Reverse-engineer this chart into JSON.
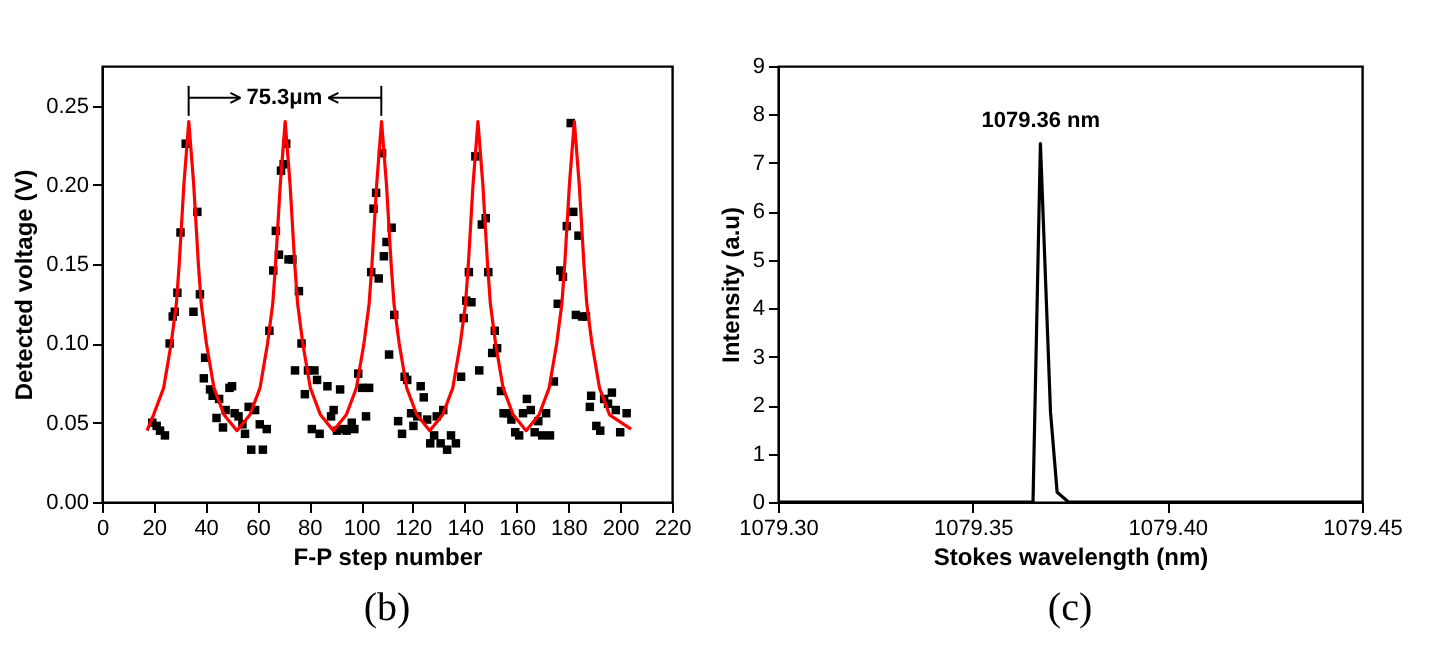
{
  "chart_data": [
    {
      "type": "scatter",
      "xlabel": "F-P step number",
      "ylabel": "Detected voltage (V)",
      "xlim": [
        0,
        220
      ],
      "xticks": [
        0,
        20,
        40,
        60,
        80,
        100,
        120,
        140,
        160,
        180,
        200,
        220
      ],
      "ylim": [
        0,
        0.275
      ],
      "yticks": [
        {
          "value": 0,
          "label": "0.00"
        },
        0.05,
        {
          "value": 0.1,
          "label": "0.10"
        },
        0.15,
        {
          "value": 0.2,
          "label": "0.20"
        },
        0.25
      ],
      "annotations": [
        "75.3μm",
        "(b)"
      ],
      "series": [
        {
          "color": "#000000",
          "marker": "square",
          "x": [
            19.4,
            21.1,
            22.4,
            24.3,
            26.1,
            27.3,
            28.1,
            29.1,
            30.3,
            32.3,
            35.3,
            36.8,
            37.8,
            39.3,
            39.8,
            41.7,
            42.7,
            44.2,
            45.2,
            46.7,
            47.7,
            49.2,
            50.2,
            51.2,
            52.7,
            54.2,
            55.2,
            56.6,
            57.6,
            59.1,
            60.9,
            62.1,
            63.6,
            64.6,
            66.1,
            67.1,
            68.3,
            69.1,
            70.1,
            71.1,
            72.0,
            73.5,
            74.5,
            76.0,
            77.0,
            78.3,
            79.5,
            81.0,
            82.0,
            83.0,
            84.0,
            87.0,
            88.4,
            89.4,
            90.7,
            91.9,
            93.2,
            94.4,
            96.4,
            97.4,
            98.9,
            100.4,
            101.9,
            103.1,
            103.9,
            104.8,
            105.8,
            106.8,
            108.1,
            108.8,
            109.8,
            110.8,
            111.8,
            112.8,
            114.3,
            115.8,
            116.8,
            117.8,
            119.3,
            120.2,
            121.7,
            123.0,
            124.2,
            125.5,
            126.7,
            128.2,
            129.2,
            130.7,
            131.7,
            133.2,
            134.7,
            136.6,
            138.6,
            139.6,
            140.6,
            141.6,
            142.6,
            144.1,
            145.6,
            146.6,
            148.1,
            149.1,
            150.6,
            151.6,
            152.5,
            154.0,
            155.0,
            156.5,
            158.0,
            159.5,
            161.0,
            162.5,
            164.0,
            165.5,
            167.0,
            168.4,
            169.9,
            171.4,
            172.9,
            174.4,
            175.9,
            176.9,
            177.9,
            179.4,
            180.9,
            181.9,
            182.9,
            183.9,
            185.3,
            186.8,
            188.3,
            188.8,
            190.8,
            192.3,
            193.8,
            195.3,
            196.8,
            198.3,
            200.0,
            202.5
          ],
          "values": [
            0.05,
            0.048,
            0.045,
            0.042,
            0.1,
            0.117,
            0.12,
            0.132,
            0.17,
            0.226,
            0.12,
            0.183,
            0.131,
            0.078,
            0.091,
            0.071,
            0.067,
            0.053,
            0.065,
            0.047,
            0.058,
            0.072,
            0.073,
            0.056,
            0.054,
            0.049,
            0.043,
            0.06,
            0.033,
            0.058,
            0.049,
            0.033,
            0.046,
            0.108,
            0.146,
            0.171,
            0.156,
            0.209,
            0.213,
            0.226,
            0.153,
            0.153,
            0.083,
            0.133,
            0.1,
            0.068,
            0.083,
            0.046,
            0.083,
            0.077,
            0.043,
            0.073,
            0.054,
            0.058,
            0.045,
            0.071,
            0.046,
            0.045,
            0.05,
            0.046,
            0.081,
            0.072,
            0.054,
            0.072,
            0.145,
            0.185,
            0.195,
            0.141,
            0.22,
            0.155,
            0.164,
            0.093,
            0.173,
            0.118,
            0.051,
            0.043,
            0.079,
            0.077,
            0.056,
            0.048,
            0.054,
            0.073,
            0.066,
            0.052,
            0.037,
            0.042,
            0.054,
            0.037,
            0.058,
            0.033,
            0.042,
            0.037,
            0.079,
            0.116,
            0.127,
            0.145,
            0.126,
            0.218,
            0.083,
            0.175,
            0.179,
            0.145,
            0.094,
            0.108,
            0.097,
            0.07,
            0.056,
            0.056,
            0.052,
            0.044,
            0.042,
            0.056,
            0.065,
            0.058,
            0.044,
            0.051,
            0.042,
            0.056,
            0.042,
            0.076,
            0.125,
            0.146,
            0.142,
            0.174,
            0.239,
            0.183,
            0.118,
            0.168,
            0.117,
            0.117,
            0.06,
            0.067,
            0.048,
            0.045,
            0.065,
            0.062,
            0.069,
            0.058,
            0.044,
            0.056
          ]
        },
        {
          "type": "line",
          "color": "#ff0000",
          "x": [
            17.4,
            19.9,
            23.8,
            26.7,
            28.7,
            29.8,
            31.6,
            33.5,
            35.4,
            37.2,
            38.3,
            40.3,
            43.2,
            47.1,
            52.1,
            57.1,
            61.0,
            63.9,
            65.9,
            67.0,
            68.8,
            70.7,
            72.6,
            74.4,
            75.5,
            77.5,
            80.4,
            84.3,
            89.3,
            94.3,
            98.2,
            101.1,
            103.1,
            104.2,
            106.0,
            107.9,
            109.8,
            111.6,
            112.7,
            114.7,
            117.6,
            121.5,
            126.5,
            131.5,
            135.4,
            138.3,
            140.3,
            141.4,
            143.2,
            145.1,
            147.0,
            148.8,
            149.9,
            151.9,
            154.8,
            158.7,
            163.7,
            168.7,
            172.6,
            175.5,
            177.5,
            178.6,
            180.4,
            182.3,
            184.2,
            186.0,
            187.1,
            189.1,
            192.0,
            195.9,
            204.2
          ],
          "values": [
            0.045,
            0.055,
            0.072,
            0.1,
            0.125,
            0.15,
            0.2,
            0.24,
            0.2,
            0.15,
            0.125,
            0.1,
            0.072,
            0.055,
            0.045,
            0.055,
            0.072,
            0.1,
            0.125,
            0.15,
            0.2,
            0.24,
            0.2,
            0.15,
            0.125,
            0.1,
            0.072,
            0.055,
            0.045,
            0.055,
            0.072,
            0.1,
            0.125,
            0.15,
            0.2,
            0.24,
            0.2,
            0.15,
            0.125,
            0.1,
            0.072,
            0.055,
            0.045,
            0.055,
            0.072,
            0.1,
            0.125,
            0.15,
            0.2,
            0.24,
            0.2,
            0.15,
            0.125,
            0.1,
            0.072,
            0.055,
            0.045,
            0.055,
            0.072,
            0.1,
            0.125,
            0.15,
            0.2,
            0.24,
            0.2,
            0.15,
            0.125,
            0.1,
            0.072,
            0.055,
            0.046
          ]
        }
      ]
    },
    {
      "type": "line",
      "xlabel": "Stokes wavelength (nm)",
      "ylabel": "Intensity (a.u)",
      "xlim": [
        1079.3,
        1079.45
      ],
      "xticks": [
        {
          "value": 1079.3,
          "label": "1079.30"
        },
        {
          "value": 1079.35,
          "label": "1079.35"
        },
        {
          "value": 1079.4,
          "label": "1079.40"
        },
        {
          "value": 1079.45,
          "label": "1079.45"
        }
      ],
      "ylim": [
        0,
        9
      ],
      "yticks": [
        0,
        1,
        2,
        3,
        4,
        5,
        6,
        7,
        8,
        9
      ],
      "annotations": [
        "1079.36 nm",
        "(c)"
      ],
      "series": [
        {
          "color": "#000000",
          "x": [
            1079.3,
            1079.3655,
            1079.3674,
            1079.37,
            1079.3717,
            1079.3746,
            1079.45
          ],
          "values": [
            0,
            0,
            7.4,
            1.85,
            0.2,
            0,
            0
          ]
        }
      ]
    }
  ]
}
